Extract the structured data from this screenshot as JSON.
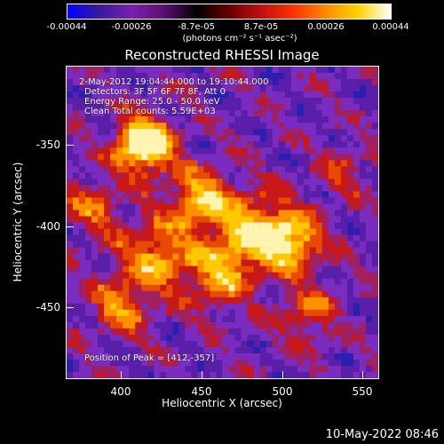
{
  "colorbar": {
    "tick_labels": [
      "-0.00044",
      "-0.00026",
      "-8.7e-05",
      "8.7e-05",
      "0.00026",
      "0.00044"
    ],
    "units": "(photons cm⁻² s⁻¹ asec⁻²)",
    "colors": [
      "#0000ff",
      "#3b1a9c",
      "#7a1fb0",
      "#5a1070",
      "#000000",
      "#6a0000",
      "#c01010",
      "#ff3300",
      "#ff8c00",
      "#ffd400",
      "#ffffff"
    ]
  },
  "title": "Reconstructed RHESSI Image",
  "info": {
    "time_range": "2-May-2012 19:04:44.000 to 19:10:44.000",
    "detectors": "Detectors: 3F 5F 6F 7F 8F, Att 0",
    "energy": "Energy Range: 25.0 - 50.0 keV",
    "clean": "Clean     Total counts: 5.59E+03",
    "peak": "Position of Peak = [412,-357]"
  },
  "axes": {
    "xlabel": "Heliocentric X (arcsec)",
    "ylabel": "Heliocentric Y (arcsec)",
    "xticks": [
      "400",
      "450",
      "500",
      "550"
    ],
    "yticks": [
      "-350",
      "-400",
      "-450"
    ]
  },
  "timestamp": "10-May-2022 08:46"
}
